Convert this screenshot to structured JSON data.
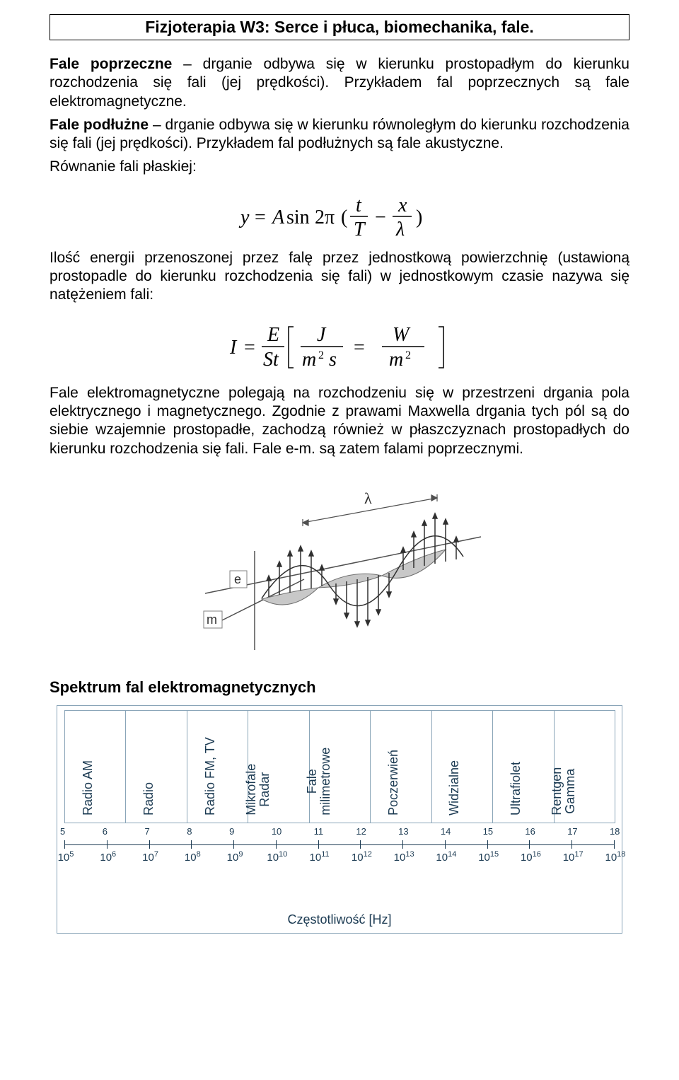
{
  "title": "Fizjoterapia W3: Serce i płuca, biomechanika, fale.",
  "para1": {
    "b1": "Fale poprzeczne",
    "t1": " – drganie odbywa się w kierunku prostopadłym do kierunku rozchodzenia się fali (jej prędkości). Przykładem fal poprzecznych są fale elektromagnetyczne."
  },
  "para2": {
    "b1": "Fale podłużne",
    "t1": " – drganie odbywa się w kierunku równoległym do kierunku rozchodzenia się fali (jej prędkości). Przykładem fal podłużnych są fale akustyczne."
  },
  "para3": "Równanie fali płaskiej:",
  "eq1": {
    "text": "y = A sin 2π ( t/T − x/λ )",
    "vars": {
      "y": "y",
      "A": "A",
      "t": "t",
      "T": "T",
      "x": "x",
      "lambda": "λ",
      "twoPi": "2π",
      "sin": "sin"
    }
  },
  "para4": "Ilość energii przenoszonej przez falę przez jednostkową powierzchnię (ustawioną prostopadle do kierunku rozchodzenia się fali) w jednostkowym czasie nazywa się natężeniem fali:",
  "eq2": {
    "text": "I = E / (S t) [ J / (m² s) = W / m² ]",
    "vars": {
      "I": "I",
      "E": "E",
      "St": "St",
      "J": "J",
      "m2s": "m²s",
      "W": "W",
      "m2": "m²"
    }
  },
  "para5": "Fale elektromagnetyczne polegają na rozchodzeniu się w przestrzeni drgania pola elektrycznego i magnetycznego. Zgodnie z prawami Maxwella drgania tych pól są do siebie wzajemnie prostopadłe, zachodzą również w płaszczyznach prostopadłych do kierunku rozchodzenia się fali. Fale e-m. są zatem falami poprzecznymi.",
  "emwave": {
    "labels": {
      "lambda": "λ",
      "e": "e",
      "m": "m"
    },
    "colors": {
      "stroke": "#606060",
      "fill_light": "#c8c8c8"
    }
  },
  "spectrum_heading": "Spektrum fal elektromagnetycznych",
  "spectrum": {
    "type": "axis-bands",
    "axis_title": "Częstotliwość [Hz]",
    "border_color": "#8aa5b8",
    "text_color": "#1b3a52",
    "background_color": "#ffffff",
    "band_fontsize": 18,
    "axis_fontsize": 15,
    "bands": [
      {
        "label": "Radio AM"
      },
      {
        "label": "Radio"
      },
      {
        "label": "Radio FM, TV"
      },
      {
        "label": "Mikrofale Radar"
      },
      {
        "label": "Fale milimetrowe"
      },
      {
        "label": "Poczerwień"
      },
      {
        "label": "Widzialne"
      },
      {
        "label": "Ultrafiolet"
      },
      {
        "label": "Rentgen Gamma"
      }
    ],
    "ticks": [
      {
        "top": "5",
        "base": "10",
        "exp": "5"
      },
      {
        "top": "6",
        "base": "10",
        "exp": "6"
      },
      {
        "top": "7",
        "base": "10",
        "exp": "7"
      },
      {
        "top": "8",
        "base": "10",
        "exp": "8"
      },
      {
        "top": "9",
        "base": "10",
        "exp": "9"
      },
      {
        "top": "10",
        "base": "10",
        "exp": "10"
      },
      {
        "top": "11",
        "base": "10",
        "exp": "11"
      },
      {
        "top": "12",
        "base": "10",
        "exp": "12"
      },
      {
        "top": "13",
        "base": "10",
        "exp": "13"
      },
      {
        "top": "14",
        "base": "10",
        "exp": "14"
      },
      {
        "top": "15",
        "base": "10",
        "exp": "15"
      },
      {
        "top": "16",
        "base": "10",
        "exp": "16"
      },
      {
        "top": "17",
        "base": "10",
        "exp": "17"
      },
      {
        "top": "18",
        "base": "10",
        "exp": "18"
      }
    ]
  }
}
